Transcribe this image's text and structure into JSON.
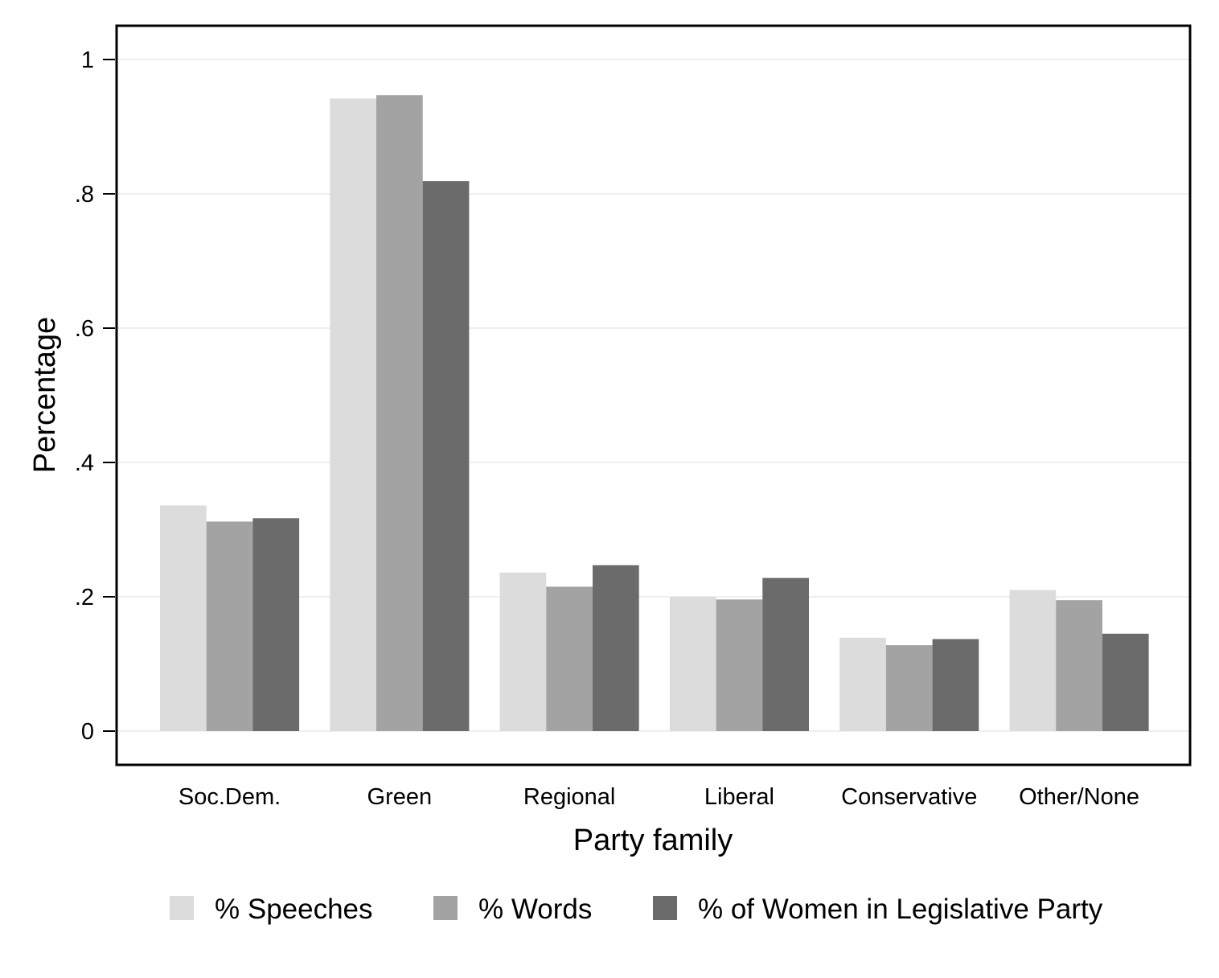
{
  "chart_data": {
    "type": "bar",
    "title": "",
    "xlabel": "Party family",
    "ylabel": "Percentage",
    "categories": [
      "Soc.Dem.",
      "Green",
      "Regional",
      "Liberal",
      "Conservative",
      "Other/None"
    ],
    "series": [
      {
        "name": "% Speeches",
        "color": "#dcdcdc",
        "values": [
          0.336,
          0.942,
          0.236,
          0.2,
          0.139,
          0.21
        ]
      },
      {
        "name": "% Words",
        "color": "#a3a3a3",
        "values": [
          0.312,
          0.947,
          0.215,
          0.196,
          0.128,
          0.195
        ]
      },
      {
        "name": "% of Women in Legislative Party",
        "color": "#6b6b6b",
        "values": [
          0.317,
          0.819,
          0.247,
          0.228,
          0.137,
          0.145
        ]
      }
    ],
    "yticks": [
      {
        "value": 0,
        "label": "0"
      },
      {
        "value": 0.2,
        "label": ".2"
      },
      {
        "value": 0.4,
        "label": ".4"
      },
      {
        "value": 0.6,
        "label": ".6"
      },
      {
        "value": 0.8,
        "label": ".8"
      },
      {
        "value": 1,
        "label": "1"
      }
    ],
    "ylim": [
      -0.05,
      1.05
    ],
    "grid": true,
    "legend_position": "bottom"
  }
}
